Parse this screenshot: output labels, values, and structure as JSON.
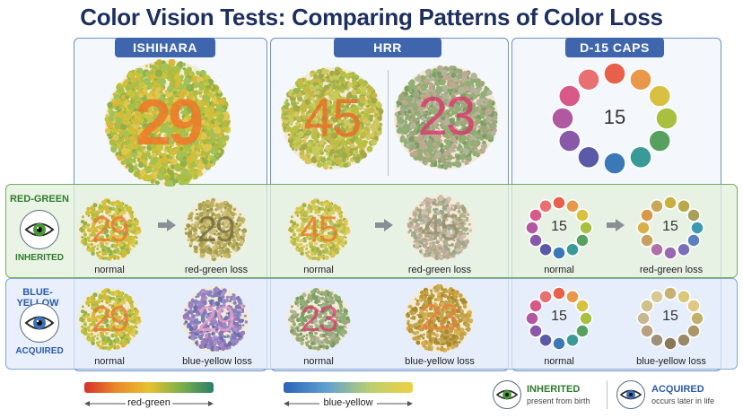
{
  "title": "Color Vision Tests: Comparing Patterns of Color Loss",
  "columns": [
    {
      "label": "ISHIHARA"
    },
    {
      "label": "HRR"
    },
    {
      "label": "D-15 CAPS"
    }
  ],
  "top_plates": {
    "ishihara": "29",
    "hrr_left": "45",
    "hrr_right": "23",
    "d15_center": "15"
  },
  "rows": {
    "red_green": {
      "label": "RED-GREEN",
      "type": "INHERITED",
      "ishihara_normal": "29",
      "ishihara_loss": "29",
      "hrr_normal": "45",
      "hrr_loss": "45",
      "d15_normal": "15",
      "d15_loss": "15",
      "normal_caption": "normal",
      "loss_caption": "red-green loss"
    },
    "blue_yellow": {
      "label": "BLUE-YELLOW",
      "type": "ACQUIRED",
      "ishihara_normal": "29",
      "ishihara_loss": "29",
      "hrr_normal": "23",
      "hrr_loss": "23",
      "d15_normal": "15",
      "d15_loss": "15",
      "normal_caption": "normal",
      "loss_caption": "blue-yellow loss"
    }
  },
  "legend": {
    "red_green": "red-green",
    "blue_yellow": "blue-yellow"
  },
  "key": {
    "inherited_title": "INHERITED",
    "inherited_sub": "present from birth",
    "acquired_title": "ACQUIRED",
    "acquired_sub": "occurs later in life"
  },
  "colors": {
    "title": "#1d2f5e",
    "header": "#3f66ad",
    "red_green_accent": "#2f7a2f",
    "blue_yellow_accent": "#2b5aa8"
  }
}
